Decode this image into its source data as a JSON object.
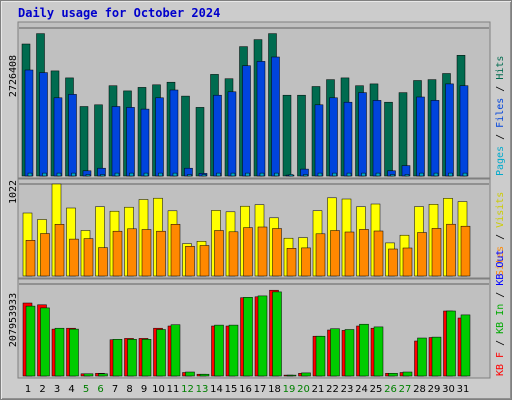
{
  "title": "Daily usage for October 2024",
  "colors": {
    "hits": "#006b4f",
    "files": "#0044dd",
    "pages": "#00aacc",
    "visits": "#ffff00",
    "sites": "#ff8800",
    "kbf": "#ff0000",
    "kbin": "#00cc00",
    "kbout": "#0000ff",
    "weekday": "#000000",
    "weekend": "#008000",
    "plot_bg": "#c0c0c0"
  },
  "labels": {
    "top_right": [
      "Pages",
      "Files",
      "Hits"
    ],
    "mid_right": [
      "Sites",
      "Visits"
    ],
    "bottom_right": [
      "KB F",
      "KB In",
      "KB Out"
    ],
    "sep": " / "
  },
  "chart_data": [
    {
      "type": "bar",
      "name": "hits-files-pages",
      "ymax_label": "2726408",
      "ymax": 2726408,
      "categories": [
        "1",
        "2",
        "3",
        "4",
        "5",
        "6",
        "7",
        "8",
        "9",
        "10",
        "11",
        "12",
        "13",
        "14",
        "15",
        "16",
        "17",
        "18",
        "19",
        "20",
        "21",
        "22",
        "23",
        "24",
        "25",
        "26",
        "27",
        "28",
        "29",
        "30",
        "31"
      ],
      "weekend": [
        5,
        6,
        12,
        13,
        19,
        20,
        26,
        27
      ],
      "series": [
        {
          "name": "Hits",
          "values": [
            2432000,
            2624000,
            1936000,
            1808000,
            1280000,
            1312000,
            1664000,
            1568000,
            1632000,
            1680000,
            1728000,
            1472000,
            1264000,
            1872000,
            1792000,
            2384000,
            2512000,
            2624000,
            1488000,
            1488000,
            1648000,
            1776000,
            1808000,
            1664000,
            1696000,
            1360000,
            1536000,
            1760000,
            1776000,
            1888000,
            2224000
          ]
        },
        {
          "name": "Files",
          "values": [
            1952000,
            1904000,
            1440000,
            1504000,
            96000,
            144000,
            1280000,
            1264000,
            1232000,
            1440000,
            1584000,
            144000,
            48000,
            1488000,
            1552000,
            2032000,
            2112000,
            2192000,
            16000,
            128000,
            1312000,
            1440000,
            1360000,
            1536000,
            1392000,
            96000,
            192000,
            1456000,
            1392000,
            1696000,
            1664000
          ]
        },
        {
          "name": "Pages",
          "values": [
            54000,
            54000,
            54000,
            54000,
            27000,
            27000,
            54000,
            54000,
            54000,
            54000,
            54000,
            27000,
            27000,
            54000,
            54000,
            54000,
            54000,
            54000,
            27000,
            27000,
            54000,
            54000,
            54000,
            54000,
            54000,
            27000,
            27000,
            54000,
            54000,
            54000,
            54000
          ]
        }
      ]
    },
    {
      "type": "bar",
      "name": "visits-sites",
      "ymax_label": "1022",
      "ymax": 1022,
      "categories": [
        "1",
        "2",
        "3",
        "4",
        "5",
        "6",
        "7",
        "8",
        "9",
        "10",
        "11",
        "12",
        "13",
        "14",
        "15",
        "16",
        "17",
        "18",
        "19",
        "20",
        "21",
        "22",
        "23",
        "24",
        "25",
        "26",
        "27",
        "28",
        "29",
        "30",
        "31"
      ],
      "series": [
        {
          "name": "Visits",
          "values": [
            700,
            628,
            1022,
            755,
            505,
            770,
            720,
            764,
            850,
            864,
            724,
            360,
            386,
            729,
            713,
            775,
            792,
            647,
            420,
            427,
            725,
            869,
            855,
            770,
            800,
            368,
            453,
            771,
            797,
            863,
            827
          ]
        },
        {
          "name": "Sites",
          "values": [
            397,
            472,
            574,
            410,
            415,
            315,
            498,
            524,
            517,
            498,
            574,
            330,
            339,
            505,
            491,
            538,
            544,
            528,
            308,
            312,
            469,
            505,
            489,
            518,
            500,
            300,
            311,
            483,
            529,
            575,
            553
          ]
        }
      ]
    },
    {
      "type": "bar",
      "name": "kbytes",
      "ymax_label": "207953933",
      "ymax": 207953933,
      "categories": [
        "1",
        "2",
        "3",
        "4",
        "5",
        "6",
        "7",
        "8",
        "9",
        "10",
        "11",
        "12",
        "13",
        "14",
        "15",
        "16",
        "17",
        "18",
        "19",
        "20",
        "21",
        "22",
        "23",
        "24",
        "25",
        "26",
        "27",
        "28",
        "29",
        "30",
        "31"
      ],
      "series": [
        {
          "name": "KB F",
          "values": [
            165000000,
            161000000,
            106000000,
            108000000,
            5000000,
            6000000,
            82000000,
            85000000,
            85000000,
            108000000,
            113000000,
            8000000,
            4000000,
            113000000,
            113000000,
            177000000,
            179000000,
            194000000,
            2000000,
            6000000,
            90000000,
            104000000,
            103000000,
            113000000,
            108000000,
            6000000,
            8000000,
            79000000,
            87000000,
            147000000,
            131000000
          ]
        },
        {
          "name": "KB In",
          "values": [
            158000000,
            154000000,
            108000000,
            106000000,
            5000000,
            5000000,
            83000000,
            83000000,
            83000000,
            105000000,
            116000000,
            9000000,
            4000000,
            115000000,
            115000000,
            178000000,
            181000000,
            190000000,
            2000000,
            7000000,
            90000000,
            107000000,
            105000000,
            117000000,
            111000000,
            6000000,
            9000000,
            86000000,
            88000000,
            147000000,
            138000000
          ]
        }
      ]
    }
  ]
}
